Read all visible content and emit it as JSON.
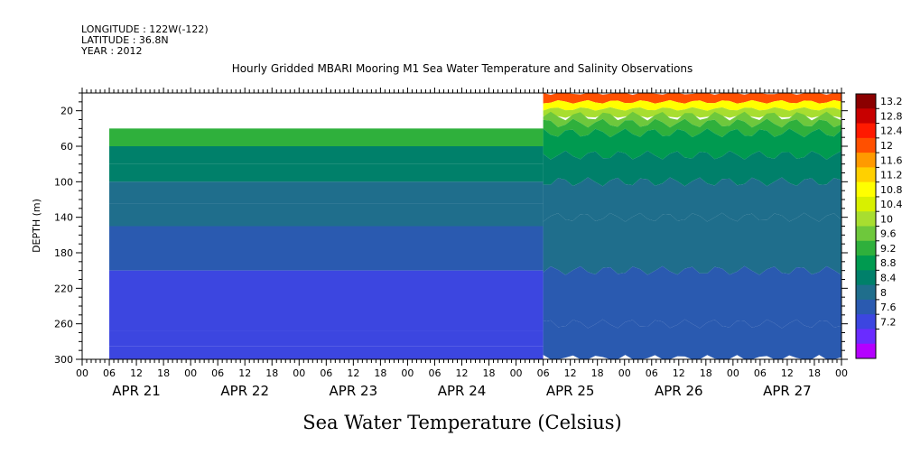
{
  "header": {
    "longitude": "LONGITUDE : 122W(-122)",
    "latitude": "LATITUDE : 36.8N",
    "year": "YEAR : 2012"
  },
  "chart_data": {
    "type": "heatmap",
    "title": "Hourly Gridded MBARI Mooring M1 Sea Water Temperature and Salinity Observations",
    "bottom_title": "Sea Water Temperature (Celsius)",
    "ylabel": "DEPTH (m)",
    "xlabel": "",
    "x_range_hours": [
      0,
      168
    ],
    "ylim": [
      0,
      300
    ],
    "y_ticks": [
      20,
      60,
      100,
      140,
      180,
      220,
      260,
      300
    ],
    "x_hour_tick_labels": [
      "00",
      "06",
      "12",
      "18",
      "00",
      "06",
      "12",
      "18",
      "00",
      "06",
      "12",
      "18",
      "00",
      "06",
      "12",
      "18",
      "00",
      "06",
      "12",
      "18",
      "00",
      "06",
      "12",
      "18",
      "00",
      "06",
      "12",
      "18",
      "00"
    ],
    "day_labels": [
      "APR 21",
      "APR 22",
      "APR 23",
      "APR 24",
      "APR 25",
      "APR 26",
      "APR 27"
    ],
    "colorbar_levels": [
      "13.2",
      "12.8",
      "12.4",
      "12",
      "11.6",
      "11.2",
      "10.8",
      "10.4",
      "10",
      "9.6",
      "9.2",
      "8.8",
      "8.4",
      "8",
      "7.6",
      "7.2"
    ],
    "colorbar_colors": [
      "#8b0000",
      "#c80000",
      "#ff1a00",
      "#ff5000",
      "#ff9a00",
      "#ffd000",
      "#ffff00",
      "#d8f000",
      "#a8de30",
      "#6ec83c",
      "#2fb03c",
      "#009a50",
      "#00806a",
      "#1f6e8c",
      "#2a5ab0",
      "#3c46e0",
      "#6a2cff",
      "#b400ff"
    ],
    "depth_profile_before_apr25": [
      {
        "depth": [
          40,
          60
        ],
        "temp": 9.4
      },
      {
        "depth": [
          60,
          80
        ],
        "temp": 9.0
      },
      {
        "depth": [
          80,
          100
        ],
        "temp": 8.8
      },
      {
        "depth": [
          100,
          125
        ],
        "temp": 8.6
      },
      {
        "depth": [
          125,
          150
        ],
        "temp": 8.4
      },
      {
        "depth": [
          150,
          180
        ],
        "temp": 8.2
      },
      {
        "depth": [
          180,
          200
        ],
        "temp": 8.0
      },
      {
        "depth": [
          200,
          268
        ],
        "temp": 7.8
      },
      {
        "depth": [
          268,
          285
        ],
        "temp": 7.6
      },
      {
        "depth": [
          285,
          300
        ],
        "temp": 7.4
      }
    ],
    "depth_profile_after_apr25": [
      {
        "depth": [
          0,
          10
        ],
        "temp": 12.4
      },
      {
        "depth": [
          10,
          18
        ],
        "temp": 11.2
      },
      {
        "depth": [
          18,
          26
        ],
        "temp": 10.4
      },
      {
        "depth": [
          26,
          34
        ],
        "temp": 10.0
      },
      {
        "depth": [
          34,
          45
        ],
        "temp": 9.6
      },
      {
        "depth": [
          45,
          70
        ],
        "temp": 9.2
      },
      {
        "depth": [
          70,
          100
        ],
        "temp": 8.8
      },
      {
        "depth": [
          100,
          140
        ],
        "temp": 8.6
      },
      {
        "depth": [
          140,
          200
        ],
        "temp": 8.4
      },
      {
        "depth": [
          200,
          260
        ],
        "temp": 8.2
      },
      {
        "depth": [
          260,
          300
        ],
        "temp": 8.0
      }
    ],
    "data_start_hour": 6,
    "transition_hour": 102
  }
}
